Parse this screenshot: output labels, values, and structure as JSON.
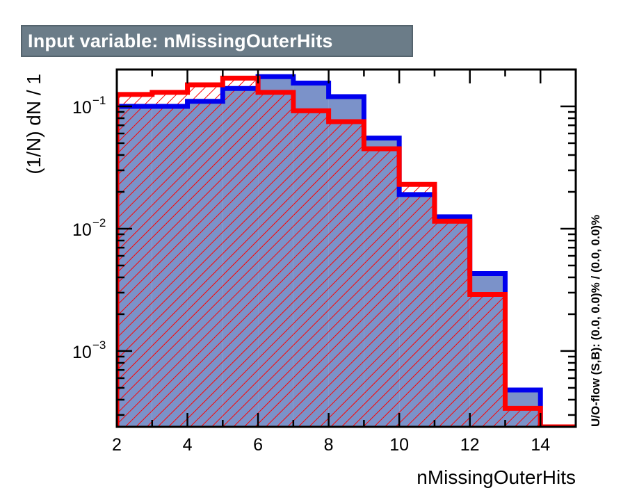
{
  "header": {
    "title": "Input variable: nMissingOuterHits"
  },
  "colors": {
    "signal_fill": "#7b92c9",
    "signal_line": "#0000ee",
    "background_line": "#ff0000",
    "title_box": "#6b7c88"
  },
  "chart_data": {
    "type": "histogram",
    "title": "Input variable: nMissingOuterHits",
    "xlabel": "nMissingOuterHits",
    "ylabel": "(1/N) dN / 1",
    "side_label": "U/O-flow (S,B): (0.0, 0.0)% / (0.0, 0.0)%",
    "xlim": [
      2,
      15
    ],
    "ylim": [
      0.00024,
      0.2
    ],
    "yscale": "log",
    "x_ticks": [
      "2",
      "4",
      "6",
      "8",
      "10",
      "12",
      "14"
    ],
    "y_tick_labels": [
      {
        "base": "10",
        "exp": "−1",
        "value": 0.1
      },
      {
        "base": "10",
        "exp": "−2",
        "value": 0.01
      },
      {
        "base": "10",
        "exp": "−3",
        "value": 0.001
      }
    ],
    "bin_edges": [
      2,
      3,
      4,
      5,
      6,
      7,
      8,
      9,
      10,
      11,
      12,
      13,
      14,
      15
    ],
    "series": [
      {
        "key": "signal",
        "style": "filled",
        "values": [
          0.1,
          0.1,
          0.11,
          0.14,
          0.175,
          0.155,
          0.12,
          0.055,
          0.019,
          0.0125,
          0.0043,
          0.00048,
          0.00024
        ]
      },
      {
        "key": "background",
        "style": "hatched",
        "values": [
          0.125,
          0.13,
          0.15,
          0.17,
          0.13,
          0.092,
          0.075,
          0.045,
          0.023,
          0.0115,
          0.0029,
          0.00034,
          0.00024
        ]
      }
    ]
  }
}
